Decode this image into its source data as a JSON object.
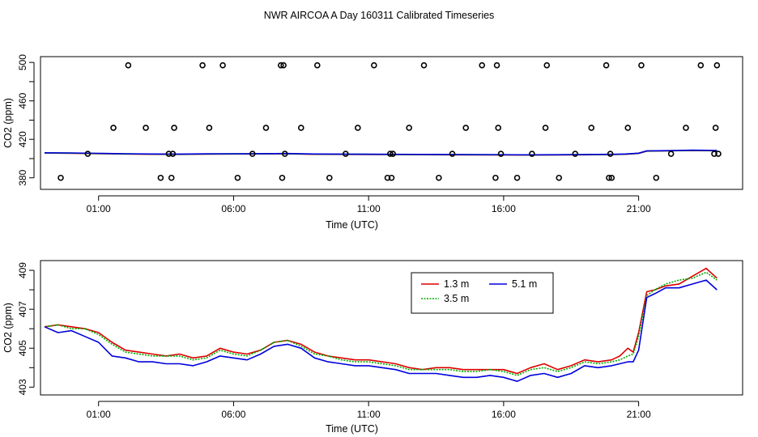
{
  "title": "NWR AIRCOA A  Day 160311  Calibrated Timeseries",
  "chart_data": [
    {
      "type": "scatter",
      "xlabel": "Time (UTC)",
      "ylabel": "CO2 (ppm)",
      "x_ticks": [
        "01:00",
        "06:00",
        "11:00",
        "16:00",
        "21:00"
      ],
      "x_tick_values": [
        1,
        6,
        11,
        16,
        21
      ],
      "xlim": [
        -1.15,
        24.85
      ],
      "y_ticks": [
        380,
        420,
        460,
        500
      ],
      "y_minor_ticks": [
        400,
        440,
        480
      ],
      "ylim": [
        368,
        506
      ],
      "series": [
        {
          "name": "calibration points",
          "marker": "open-circle",
          "x": [
            -0.4,
            0.6,
            1.55,
            2.1,
            2.75,
            3.3,
            3.6,
            3.7,
            3.75,
            3.8,
            4.85,
            5.1,
            5.6,
            6.15,
            6.7,
            7.2,
            7.75,
            7.8,
            7.85,
            7.9,
            8.5,
            9.1,
            9.55,
            10.15,
            10.6,
            11.2,
            11.7,
            11.8,
            11.85,
            11.9,
            12.5,
            13.05,
            13.6,
            14.1,
            14.6,
            15.2,
            15.7,
            15.75,
            15.8,
            15.9,
            16.5,
            17.05,
            17.55,
            17.6,
            18.05,
            18.65,
            19.25,
            19.8,
            19.9,
            19.95,
            20,
            20.6,
            21.1,
            21.65,
            22.2,
            22.75,
            23.3,
            23.8,
            23.85,
            23.9,
            23.95
          ],
          "y": [
            380,
            405,
            432,
            497,
            432,
            380,
            405,
            380,
            405,
            432,
            497,
            432,
            497,
            380,
            405,
            432,
            497,
            380,
            497,
            405,
            432,
            497,
            380,
            405,
            432,
            497,
            380,
            405,
            380,
            405,
            432,
            497,
            380,
            405,
            432,
            497,
            380,
            497,
            432,
            405,
            380,
            405,
            432,
            497,
            380,
            405,
            432,
            497,
            380,
            405,
            380,
            432,
            497,
            380,
            405,
            432,
            497,
            405,
            432,
            497,
            405
          ]
        },
        {
          "name": "ambient traces",
          "x": [
            -1,
            0,
            1,
            2,
            3,
            4,
            5,
            6,
            7,
            8,
            9,
            10,
            11,
            12,
            13,
            14,
            15,
            16,
            17,
            18,
            19,
            20,
            20.5,
            21,
            21.3,
            22,
            23,
            23.9
          ],
          "y": [
            405.9,
            405.7,
            405.3,
            404.9,
            404.6,
            404.5,
            404.8,
            404.9,
            405.0,
            405.1,
            404.6,
            404.5,
            404.4,
            404.3,
            404.2,
            404.1,
            404.0,
            403.9,
            403.8,
            403.9,
            404.1,
            404.3,
            404.6,
            405.5,
            407.9,
            408.1,
            408.6,
            408.3
          ]
        }
      ]
    },
    {
      "type": "line",
      "xlabel": "Time (UTC)",
      "ylabel": "CO2 (ppm)",
      "x_ticks": [
        "01:00",
        "06:00",
        "11:00",
        "16:00",
        "21:00"
      ],
      "x_tick_values": [
        1,
        6,
        11,
        16,
        21
      ],
      "xlim": [
        -1.15,
        24.85
      ],
      "y_ticks": [
        403,
        405,
        407,
        409
      ],
      "y_minor_ticks": [
        404,
        406,
        408
      ],
      "ylim": [
        402.6,
        409.5
      ],
      "legend": "top-center",
      "legend_entries": [
        "1.3 m",
        "5.1 m",
        "3.5 m"
      ],
      "series": [
        {
          "name": "1.3 m",
          "color": "#dd0000",
          "x": [
            -1,
            -0.5,
            0,
            0.5,
            1,
            1.5,
            2,
            2.5,
            3,
            3.5,
            4,
            4.5,
            5,
            5.5,
            6,
            6.5,
            7,
            7.5,
            8,
            8.5,
            9,
            9.5,
            10,
            10.5,
            11,
            11.5,
            12,
            12.5,
            13,
            13.5,
            14,
            14.5,
            15,
            15.5,
            16,
            16.5,
            17,
            17.5,
            18,
            18.5,
            19,
            19.5,
            20,
            20.3,
            20.6,
            20.8,
            21,
            21.3,
            21.6,
            22,
            22.5,
            23,
            23.5,
            23.9
          ],
          "y": [
            406.1,
            406.2,
            406.1,
            406.0,
            405.8,
            405.3,
            404.9,
            404.8,
            404.7,
            404.6,
            404.7,
            404.5,
            404.6,
            405.0,
            404.8,
            404.7,
            404.9,
            405.3,
            405.4,
            405.2,
            404.8,
            404.6,
            404.5,
            404.4,
            404.4,
            404.3,
            404.2,
            404.0,
            403.9,
            404.0,
            404.0,
            403.9,
            403.9,
            403.9,
            403.9,
            403.7,
            404.0,
            404.2,
            403.9,
            404.1,
            404.4,
            404.3,
            404.4,
            404.6,
            405.0,
            404.8,
            405.8,
            407.9,
            408.0,
            408.2,
            408.3,
            408.7,
            409.1,
            408.6
          ]
        },
        {
          "name": "3.5 m",
          "color": "#00aa00",
          "x": [
            -1,
            -0.5,
            0,
            0.5,
            1,
            1.5,
            2,
            2.5,
            3,
            3.5,
            4,
            4.5,
            5,
            5.5,
            6,
            6.5,
            7,
            7.5,
            8,
            8.5,
            9,
            9.5,
            10,
            10.5,
            11,
            11.5,
            12,
            12.5,
            13,
            13.5,
            14,
            14.5,
            15,
            15.5,
            16,
            16.5,
            17,
            17.5,
            18,
            18.5,
            19,
            19.5,
            20,
            20.3,
            20.6,
            20.8,
            21,
            21.3,
            21.6,
            22,
            22.5,
            23,
            23.5,
            23.9
          ],
          "y": [
            406.1,
            406.2,
            406.0,
            406.0,
            405.7,
            405.2,
            404.8,
            404.7,
            404.6,
            404.6,
            404.6,
            404.4,
            404.5,
            404.9,
            404.7,
            404.6,
            404.9,
            405.3,
            405.4,
            405.1,
            404.7,
            404.6,
            404.4,
            404.3,
            404.3,
            404.2,
            404.1,
            403.9,
            403.9,
            403.9,
            403.9,
            403.8,
            403.8,
            403.9,
            403.8,
            403.6,
            403.9,
            404.0,
            403.8,
            404.0,
            404.3,
            404.2,
            404.3,
            404.4,
            404.6,
            404.7,
            405.6,
            407.7,
            408.0,
            408.3,
            408.5,
            408.6,
            408.9,
            408.5
          ]
        },
        {
          "name": "5.1 m",
          "color": "#0000dd",
          "x": [
            -1,
            -0.5,
            0,
            0.5,
            1,
            1.5,
            2,
            2.5,
            3,
            3.5,
            4,
            4.5,
            5,
            5.5,
            6,
            6.5,
            7,
            7.5,
            8,
            8.5,
            9,
            9.5,
            10,
            10.5,
            11,
            11.5,
            12,
            12.5,
            13,
            13.5,
            14,
            14.5,
            15,
            15.5,
            16,
            16.5,
            17,
            17.5,
            18,
            18.5,
            19,
            19.5,
            20,
            20.3,
            20.6,
            20.8,
            21,
            21.3,
            21.6,
            22,
            22.5,
            23,
            23.5,
            23.9
          ],
          "y": [
            406.1,
            405.8,
            405.9,
            405.6,
            405.3,
            404.6,
            404.5,
            404.3,
            404.3,
            404.2,
            404.2,
            404.1,
            404.3,
            404.6,
            404.5,
            404.4,
            404.7,
            405.1,
            405.2,
            405.0,
            404.5,
            404.3,
            404.2,
            404.1,
            404.1,
            404.0,
            403.9,
            403.7,
            403.7,
            403.7,
            403.6,
            403.5,
            403.5,
            403.6,
            403.5,
            403.3,
            403.6,
            403.7,
            403.5,
            403.7,
            404.1,
            404.0,
            404.1,
            404.2,
            404.3,
            404.3,
            404.9,
            407.6,
            407.8,
            408.1,
            408.1,
            408.3,
            408.5,
            408.0
          ]
        }
      ]
    }
  ]
}
